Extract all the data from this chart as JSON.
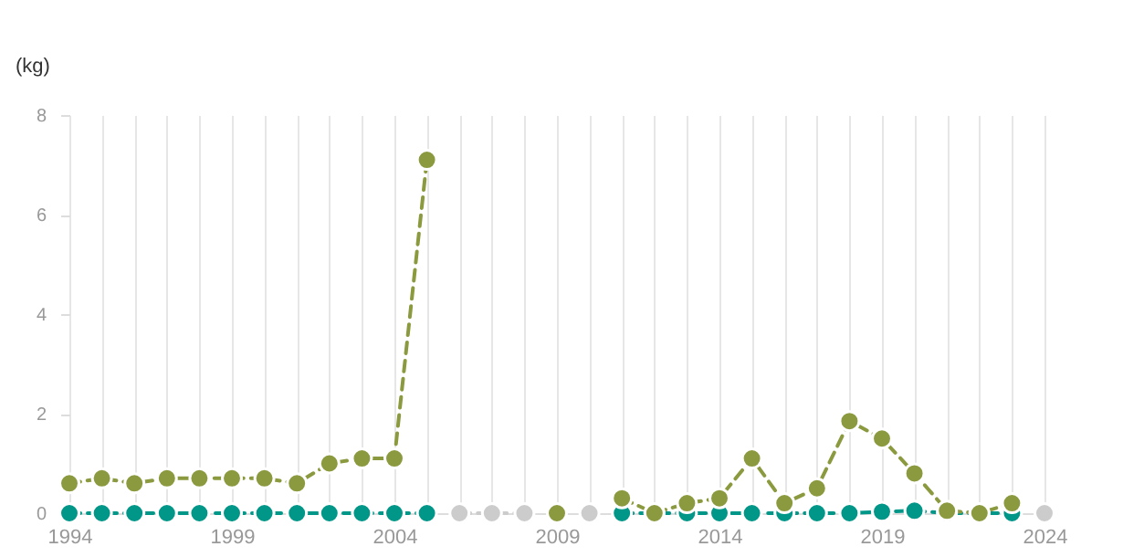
{
  "chart_data": {
    "type": "line",
    "ylabel": "(kg)",
    "x": [
      1994,
      1995,
      1996,
      1997,
      1998,
      1999,
      2000,
      2001,
      2002,
      2003,
      2004,
      2005,
      2006,
      2007,
      2008,
      2009,
      2010,
      2011,
      2012,
      2013,
      2014,
      2015,
      2016,
      2017,
      2018,
      2019,
      2020,
      2021,
      2022,
      2023,
      2024
    ],
    "series": [
      {
        "color": "#cccccc",
        "values": [
          null,
          null,
          null,
          null,
          null,
          null,
          null,
          null,
          null,
          null,
          null,
          null,
          0,
          0,
          0,
          null,
          0,
          null,
          null,
          null,
          null,
          null,
          null,
          null,
          null,
          null,
          null,
          null,
          null,
          null,
          0
        ]
      },
      {
        "color": "#009688",
        "values": [
          0,
          0,
          0,
          0,
          0,
          0,
          0,
          0,
          0,
          0,
          0,
          0,
          null,
          null,
          null,
          null,
          null,
          0,
          0,
          0,
          0,
          0,
          0,
          0,
          0,
          0.03,
          0.05,
          0,
          0,
          0,
          null
        ]
      },
      {
        "color": "#8b9a3e",
        "values": [
          0.6,
          0.7,
          0.6,
          0.7,
          0.7,
          0.7,
          0.7,
          0.6,
          1.0,
          1.1,
          1.1,
          7.1,
          null,
          null,
          null,
          0,
          null,
          0.3,
          0,
          0.2,
          0.3,
          1.1,
          0.2,
          0.5,
          1.85,
          1.5,
          0.8,
          0.05,
          0,
          0.2,
          null
        ]
      }
    ],
    "xlim": [
      1994,
      2024
    ],
    "xticks": [
      1994,
      {
        "value": 1995,
        "label": null
      },
      {
        "value": 1996,
        "label": null
      },
      {
        "value": 1997,
        "label": null
      },
      {
        "value": 1998,
        "label": null
      },
      1999,
      {
        "value": 2000,
        "label": null
      },
      {
        "value": 2001,
        "label": null
      },
      {
        "value": 2002,
        "label": null
      },
      {
        "value": 2003,
        "label": null
      },
      2004,
      {
        "value": 2005,
        "label": null
      },
      {
        "value": 2006,
        "label": null
      },
      {
        "value": 2007,
        "label": null
      },
      {
        "value": 2008,
        "label": null
      },
      2009,
      {
        "value": 2010,
        "label": null
      },
      {
        "value": 2011,
        "label": null
      },
      {
        "value": 2012,
        "label": null
      },
      {
        "value": 2013,
        "label": null
      },
      2014,
      {
        "value": 2015,
        "label": null
      },
      {
        "value": 2016,
        "label": null
      },
      {
        "value": 2017,
        "label": null
      },
      {
        "value": 2018,
        "label": null
      },
      2019,
      {
        "value": 2020,
        "label": null
      },
      {
        "value": 2021,
        "label": null
      },
      {
        "value": 2022,
        "label": null
      },
      {
        "value": 2023,
        "label": null
      },
      2024
    ],
    "ylim": [
      0,
      8
    ],
    "yticks": [
      0,
      2,
      4,
      6,
      8
    ],
    "grid": "x",
    "marker": "circle",
    "line_style": "dashed"
  }
}
